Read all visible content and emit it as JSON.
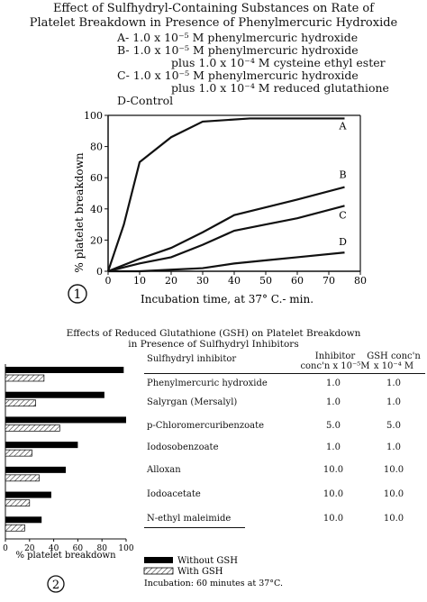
{
  "figure1": {
    "title_line1": "Effect of Sulfhydryl-Containing Substances on Rate of",
    "title_line2": "Platelet Breakdown in Presence of Phenylmercuric Hydroxide",
    "legend_lines": [
      "A- 1.0 x 10⁻⁵ M phenylmercuric hydroxide",
      "B- 1.0 x 10⁻⁵ M phenylmercuric hydroxide",
      "plus 1.0 x 10⁻⁴ M cysteine ethyl ester",
      "C- 1.0 x 10⁻⁵ M phenylmercuric hydroxide",
      "plus 1.0 x 10⁻⁴ M reduced glutathione",
      "D-Control"
    ],
    "figure_number": "1"
  },
  "figure2": {
    "title_line1": "Effects of Reduced Glutathione (GSH) on Platelet Breakdown",
    "title_line2": "in Presence of Sulfhydryl Inhibitors",
    "figure_number": "2",
    "table": {
      "headers": {
        "inhibitor": "Sulfhydryl inhibitor",
        "inhibitor_conc_1": "Inhibitor",
        "inhibitor_conc_2": "conc'n x 10⁻⁵M",
        "gsh_conc_1": "GSH conc'n",
        "gsh_conc_2": "x 10⁻⁴ M"
      },
      "rows": [
        {
          "inhibitor": "Phenylmercuric hydroxide",
          "inhibitor_conc": "1.0",
          "gsh_conc": "1.0"
        },
        {
          "inhibitor": "Salyrgan (Mersalyl)",
          "inhibitor_conc": "1.0",
          "gsh_conc": "1.0"
        },
        {
          "inhibitor": "p-Chloromercuribenzoate",
          "inhibitor_conc": "5.0",
          "gsh_conc": "5.0"
        },
        {
          "inhibitor": "Iodosobenzoate",
          "inhibitor_conc": "1.0",
          "gsh_conc": "1.0"
        },
        {
          "inhibitor": "Alloxan",
          "inhibitor_conc": "10.0",
          "gsh_conc": "10.0"
        },
        {
          "inhibitor": "Iodoacetate",
          "inhibitor_conc": "10.0",
          "gsh_conc": "10.0"
        },
        {
          "inhibitor": "N-ethyl maleimide",
          "inhibitor_conc": "10.0",
          "gsh_conc": "10.0"
        }
      ]
    },
    "key": {
      "without": "Without GSH",
      "with": "With GSH",
      "incubation_note": "Incubation: 60 minutes at 37°C."
    }
  },
  "chart_data": [
    {
      "type": "line",
      "xlabel": "Incubation time, at 37° C.- min.",
      "ylabel": "% platelet breakdown",
      "xlim": [
        0,
        80
      ],
      "ylim": [
        0,
        100
      ],
      "xticks": [
        0,
        10,
        20,
        30,
        40,
        50,
        60,
        70,
        80
      ],
      "yticks": [
        0,
        20,
        40,
        60,
        80,
        100
      ],
      "grid": false,
      "series": [
        {
          "name": "A",
          "x": [
            0,
            5,
            10,
            20,
            30,
            45,
            60,
            75
          ],
          "y": [
            0,
            30,
            70,
            86,
            96,
            98,
            98,
            98
          ]
        },
        {
          "name": "B",
          "x": [
            0,
            10,
            20,
            30,
            40,
            50,
            60,
            75
          ],
          "y": [
            0,
            8,
            15,
            25,
            36,
            41,
            46,
            54
          ]
        },
        {
          "name": "C",
          "x": [
            0,
            10,
            20,
            30,
            40,
            50,
            60,
            75
          ],
          "y": [
            0,
            5,
            9,
            17,
            26,
            30,
            34,
            42
          ]
        },
        {
          "name": "D",
          "x": [
            0,
            10,
            20,
            30,
            40,
            50,
            60,
            75
          ],
          "y": [
            0,
            0,
            1,
            2,
            5,
            7,
            9,
            12
          ]
        }
      ]
    },
    {
      "type": "bar",
      "orientation": "horizontal",
      "xlabel": "% platelet breakdown",
      "xlim": [
        0,
        100
      ],
      "xticks": [
        0,
        20,
        40,
        60,
        80,
        100
      ],
      "categories": [
        "Phenylmercuric hydroxide",
        "Salyrgan (Mersalyl)",
        "p-Chloromercuribenzoate",
        "Iodosobenzoate",
        "Alloxan",
        "Iodoacetate",
        "N-ethyl maleimide"
      ],
      "series": [
        {
          "name": "Without GSH",
          "values": [
            98,
            82,
            100,
            60,
            50,
            38,
            30
          ],
          "color": "#000000"
        },
        {
          "name": "With GSH",
          "values": [
            32,
            25,
            45,
            22,
            28,
            20,
            16
          ],
          "color": "hatched"
        }
      ],
      "legend_position": "bottom"
    }
  ]
}
